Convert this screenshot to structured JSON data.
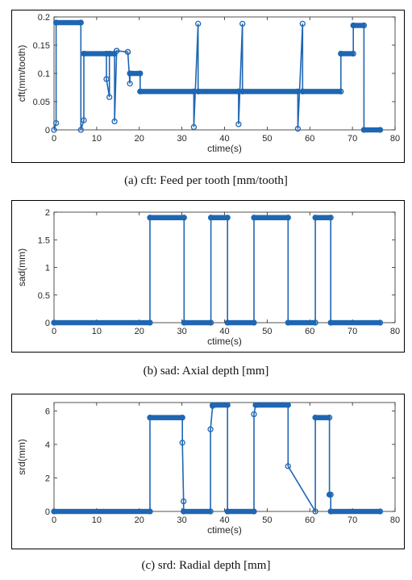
{
  "colors": {
    "series": "#1f66b3",
    "axis": "#262626"
  },
  "captions": [
    "(a) cft: Feed per tooth [mm/tooth]",
    "(b) sad: Axial depth [mm]",
    "(c) srd: Radial depth [mm]"
  ],
  "chart_data": [
    {
      "type": "line",
      "title": "",
      "xlabel": "ctime(s)",
      "ylabel": "cft(mm/tooth)",
      "xlim": [
        0,
        80
      ],
      "ylim": [
        0,
        0.2
      ],
      "xticks": [
        0,
        10,
        20,
        30,
        40,
        50,
        60,
        70,
        80
      ],
      "yticks": [
        0,
        0.05,
        0.1,
        0.15,
        0.2
      ],
      "xtick_labels": [
        "0",
        "10",
        "20",
        "30",
        "40",
        "50",
        "60",
        "70",
        "80"
      ],
      "ytick_labels": [
        "0",
        "0.05",
        "0.1",
        "0.15",
        "0.2"
      ],
      "markers": "circle",
      "series": [
        {
          "x": [
            0,
            0.5,
            0.5,
            6.3,
            6.3,
            7.0,
            7.0,
            12.3,
            12.3,
            13.0,
            13.0,
            14.2,
            14.2,
            14.7,
            14.7,
            17.3,
            17.3,
            17.8,
            17.8,
            20.2,
            20.2,
            32.8,
            32.8,
            33.8,
            33.8,
            43.3,
            43.3,
            44.2,
            44.2,
            57.2,
            57.2,
            58.3,
            58.3,
            67.3,
            67.3,
            70.2,
            70.2,
            72.7,
            72.7,
            76.5
          ],
          "y": [
            0,
            0.012,
            0.19,
            0.19,
            0,
            0.017,
            0.135,
            0.135,
            0.09,
            0.058,
            0.135,
            0.135,
            0.015,
            0.14,
            0.14,
            0.138,
            0.138,
            0.082,
            0.1,
            0.1,
            0.068,
            0.068,
            0.005,
            0.188,
            0.068,
            0.068,
            0.01,
            0.188,
            0.068,
            0.068,
            0.002,
            0.188,
            0.068,
            0.068,
            0.135,
            0.135,
            0.185,
            0.185,
            0,
            0
          ]
        }
      ]
    },
    {
      "type": "line",
      "title": "",
      "xlabel": "ctime(s)",
      "ylabel": "sad(mm)",
      "xlim": [
        0,
        80
      ],
      "ylim": [
        0,
        2
      ],
      "xticks": [
        0,
        10,
        20,
        30,
        40,
        50,
        60,
        70,
        80
      ],
      "yticks": [
        0,
        0.5,
        1,
        1.5,
        2
      ],
      "xtick_labels": [
        "0",
        "10",
        "20",
        "30",
        "40",
        "50",
        "60",
        "70",
        "80"
      ],
      "ytick_labels": [
        "0",
        "0.5",
        "1",
        "1.5",
        "2"
      ],
      "markers": "circle",
      "series": [
        {
          "x": [
            0,
            22.5,
            22.5,
            30.5,
            30.5,
            36.8,
            36.8,
            40.7,
            40.7,
            46.9,
            46.9,
            54.9,
            54.9,
            61.3,
            61.3,
            64.9,
            64.9,
            76.5
          ],
          "y": [
            0,
            0,
            1.9,
            1.9,
            0,
            0,
            1.9,
            1.9,
            0,
            0,
            1.9,
            1.9,
            0,
            0,
            1.9,
            1.9,
            0,
            0
          ]
        }
      ]
    },
    {
      "type": "line",
      "title": "",
      "xlabel": "ctime(s)",
      "ylabel": "srd(mm)",
      "xlim": [
        0,
        80
      ],
      "ylim": [
        0,
        6.5
      ],
      "xticks": [
        0,
        10,
        20,
        30,
        40,
        50,
        60,
        70,
        80
      ],
      "yticks": [
        0,
        2,
        4,
        6
      ],
      "xtick_labels": [
        "0",
        "10",
        "20",
        "30",
        "40",
        "50",
        "60",
        "70",
        "80"
      ],
      "ytick_labels": [
        "0",
        "2",
        "4",
        "6"
      ],
      "markers": "circle",
      "series": [
        {
          "x": [
            0,
            22.5,
            22.5,
            30.1,
            30.1,
            30.4,
            30.4,
            36.7,
            36.7,
            37.2,
            37.2,
            40.7,
            40.7,
            46.9,
            46.9,
            47.3,
            47.3,
            54.9,
            54.9,
            61.3,
            61.3,
            64.6,
            64.6,
            64.9,
            64.9,
            76.5
          ],
          "y": [
            0,
            0,
            5.6,
            5.6,
            4.1,
            0.6,
            0,
            0,
            4.9,
            6.3,
            6.35,
            6.35,
            0,
            0,
            5.8,
            6.35,
            6.35,
            6.35,
            2.7,
            0,
            5.6,
            5.6,
            1.0,
            1.0,
            0,
            0
          ]
        }
      ]
    }
  ]
}
